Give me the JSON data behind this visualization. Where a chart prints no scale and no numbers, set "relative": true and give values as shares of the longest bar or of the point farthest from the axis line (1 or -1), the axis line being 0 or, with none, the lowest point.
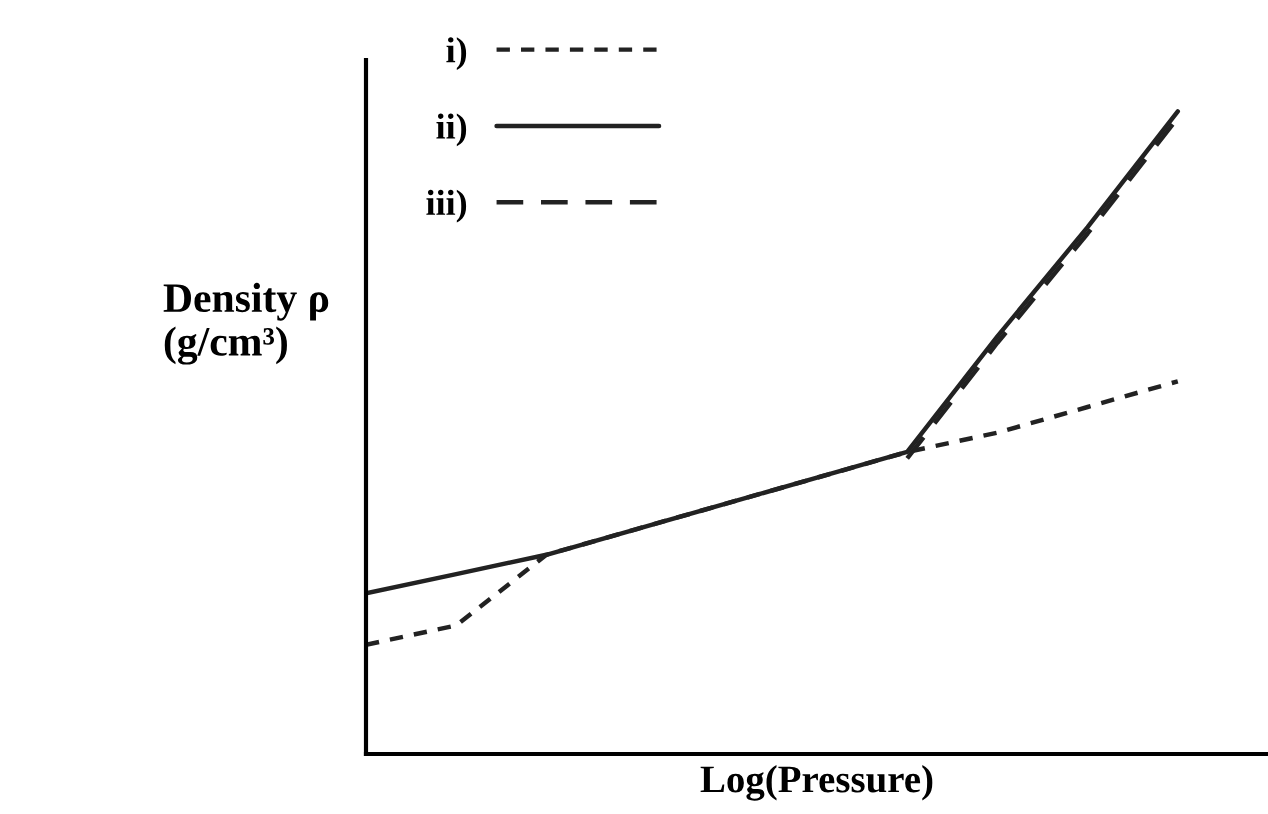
{
  "chart_data": {
    "type": "line",
    "relative": true,
    "xlabel": "Log(Pressure)",
    "ylabel": "Density ρ\n(g/cm³)",
    "tick_labels": false,
    "legend": "top left",
    "marker": "none",
    "categories": [
      null,
      null,
      null,
      null,
      null,
      null,
      null,
      null,
      null,
      null
    ],
    "series": [
      {
        "name": "i)",
        "color": "#222222",
        "line_style": "dotted",
        "values": [
          0.17,
          0.2,
          0.31,
          0.35,
          0.39,
          0.43,
          0.47,
          0.5,
          0.54,
          0.58
        ]
      },
      {
        "name": "ii)",
        "color": "#222222",
        "line_style": "solid",
        "values": [
          0.25,
          0.28,
          0.31,
          0.35,
          0.39,
          0.43,
          0.47,
          0.65,
          0.82,
          1.0
        ]
      },
      {
        "name": "iii)",
        "color": "#222222",
        "line_style": "dashed",
        "values": [
          null,
          null,
          null,
          null,
          null,
          null,
          0.46,
          0.64,
          0.81,
          0.99
        ]
      }
    ]
  }
}
